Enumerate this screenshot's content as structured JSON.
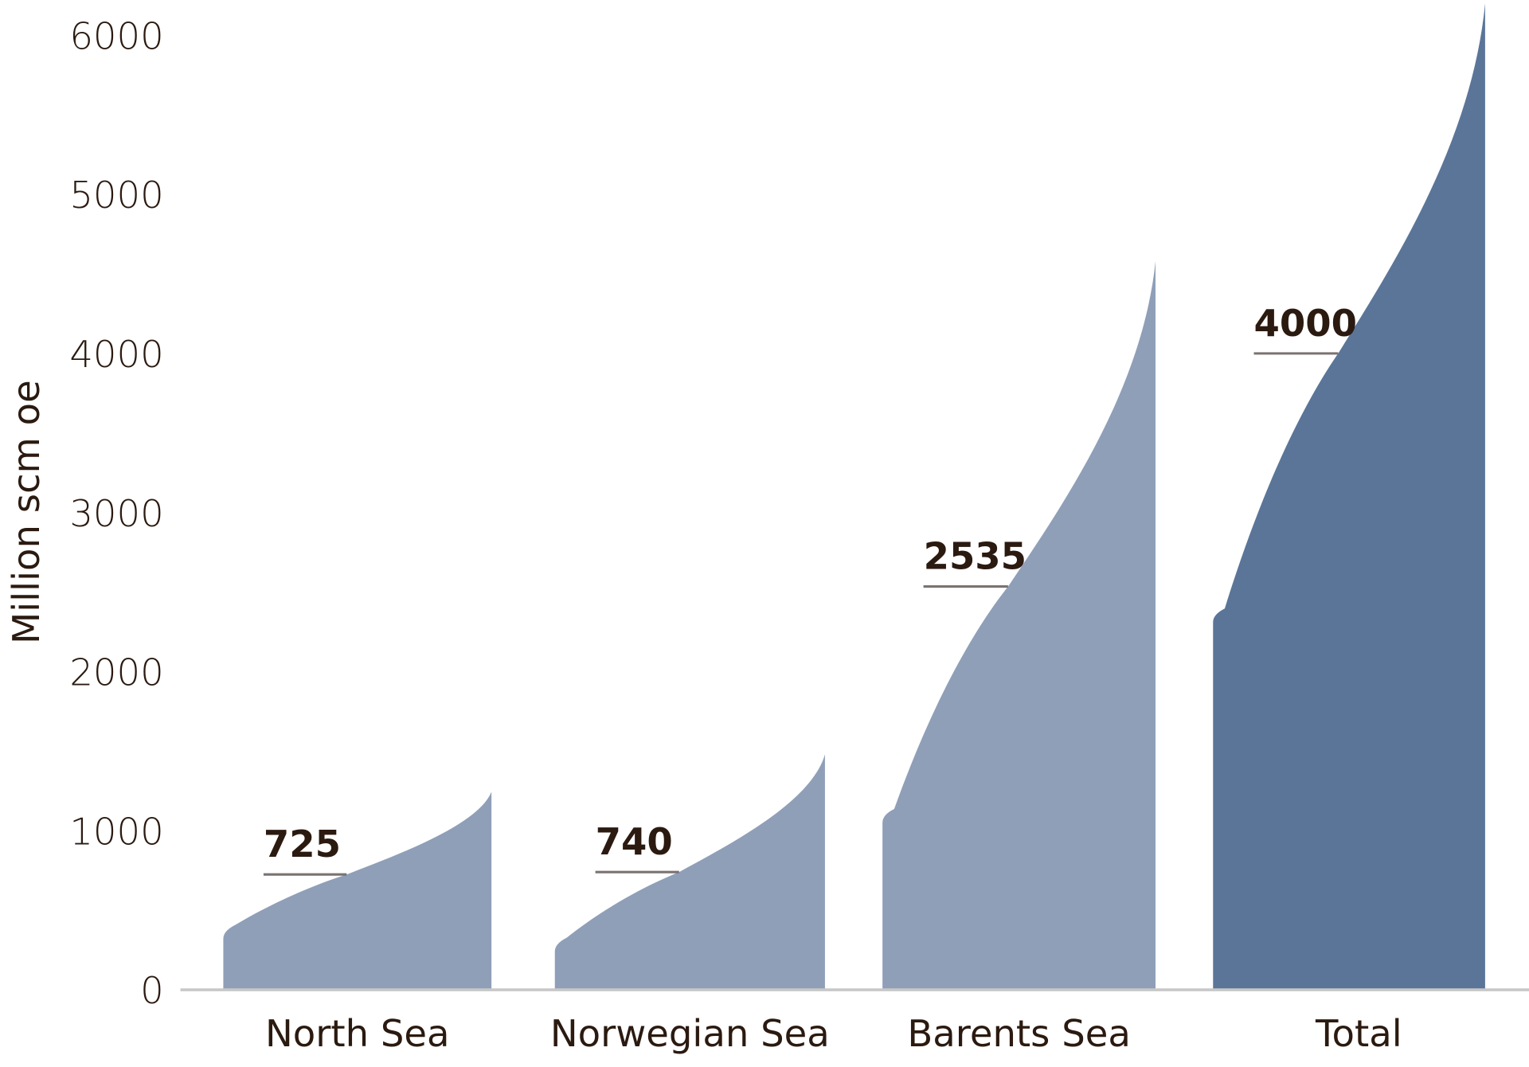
{
  "chart_data": {
    "type": "area",
    "title": "",
    "xlabel": "",
    "ylabel": "Million scm oe",
    "ylim": [
      0,
      6000
    ],
    "yticks": [
      0,
      1000,
      2000,
      3000,
      4000,
      5000,
      6000
    ],
    "grid": false,
    "categories": [
      "North Sea",
      "Norwegian Sea",
      "Barents Sea",
      "Total"
    ],
    "series": [
      {
        "category": "North Sea",
        "low": 370,
        "expected": 725,
        "high": 1245,
        "label": "725",
        "color": "#8f9fb8"
      },
      {
        "category": "Norwegian Sea",
        "low": 290,
        "expected": 740,
        "high": 1480,
        "label": "740",
        "color": "#8f9fb8"
      },
      {
        "category": "Barents Sea",
        "low": 1100,
        "expected": 2535,
        "high": 4580,
        "label": "2535",
        "color": "#8f9fb8"
      },
      {
        "category": "Total",
        "low": 2360,
        "expected": 4000,
        "high": 6200,
        "label": "4000",
        "color": "#5a7598"
      }
    ],
    "colors": {
      "axis": "#c8c8c8",
      "text": "#2b1a10",
      "label_line": "#7a7370"
    }
  }
}
